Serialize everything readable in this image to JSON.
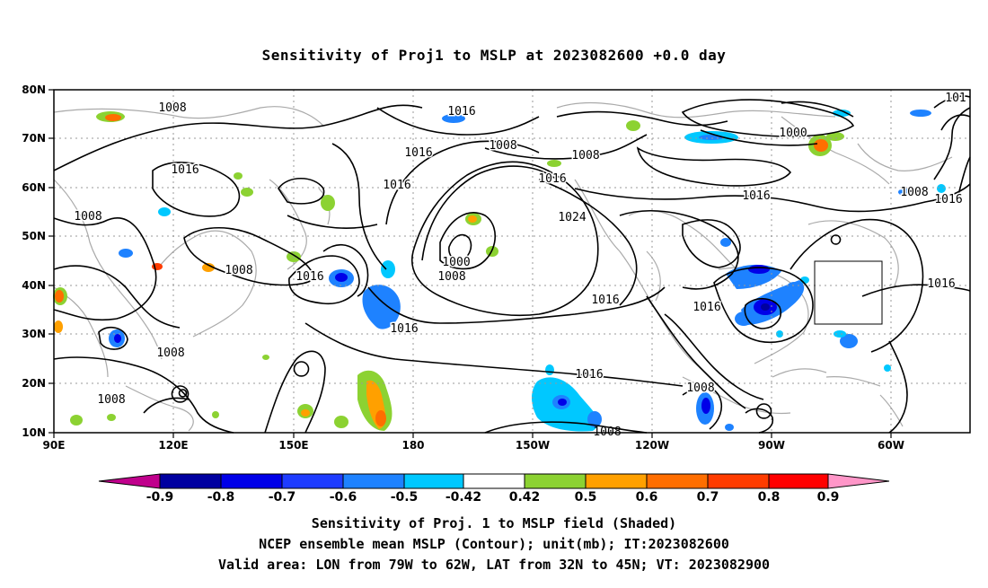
{
  "title": "Sensitivity of Proj1 to MSLP at 2023082600 +0.0 day",
  "map": {
    "lat_labels": [
      "80N",
      "70N",
      "60N",
      "50N",
      "40N",
      "30N",
      "20N",
      "10N"
    ],
    "lon_labels": [
      "90E",
      "120E",
      "150E",
      "180",
      "150W",
      "120W",
      "90W",
      "60W"
    ],
    "contour_labels": [
      "1008",
      "1016",
      "1016",
      "1008",
      "1016",
      "1008",
      "1016",
      "1008",
      "1016",
      "1024",
      "1000",
      "1008",
      "1016",
      "1016",
      "1016",
      "1016",
      "1016",
      "1008",
      "1000",
      "1016",
      "1008",
      "1016",
      "1016",
      "1008",
      "1008",
      "1008",
      "101"
    ],
    "valid_area": {
      "lon": [
        "79W",
        "62W"
      ],
      "lat": [
        "32N",
        "45N"
      ]
    }
  },
  "colorbar": {
    "labels": [
      "-0.9",
      "-0.8",
      "-0.7",
      "-0.6",
      "-0.5",
      "-0.42",
      "0.42",
      "0.5",
      "0.6",
      "0.7",
      "0.8",
      "0.9"
    ],
    "colors": [
      "#c0008c",
      "#0000a0",
      "#0000e8",
      "#1e3cff",
      "#1e82ff",
      "#00c8ff",
      "#ffffff",
      "#8cd232",
      "#ffa000",
      "#ff6e00",
      "#ff3c00",
      "#ff0000",
      "#ff96c8"
    ]
  },
  "caption": {
    "line1": "Sensitivity of Proj. 1 to MSLP field (Shaded)",
    "line2": "NCEP ensemble mean MSLP (Contour); unit(mb); IT:2023082600",
    "line3": "Valid area: LON from 79W to 62W, LAT from 32N to 45N; VT: 2023082900"
  }
}
